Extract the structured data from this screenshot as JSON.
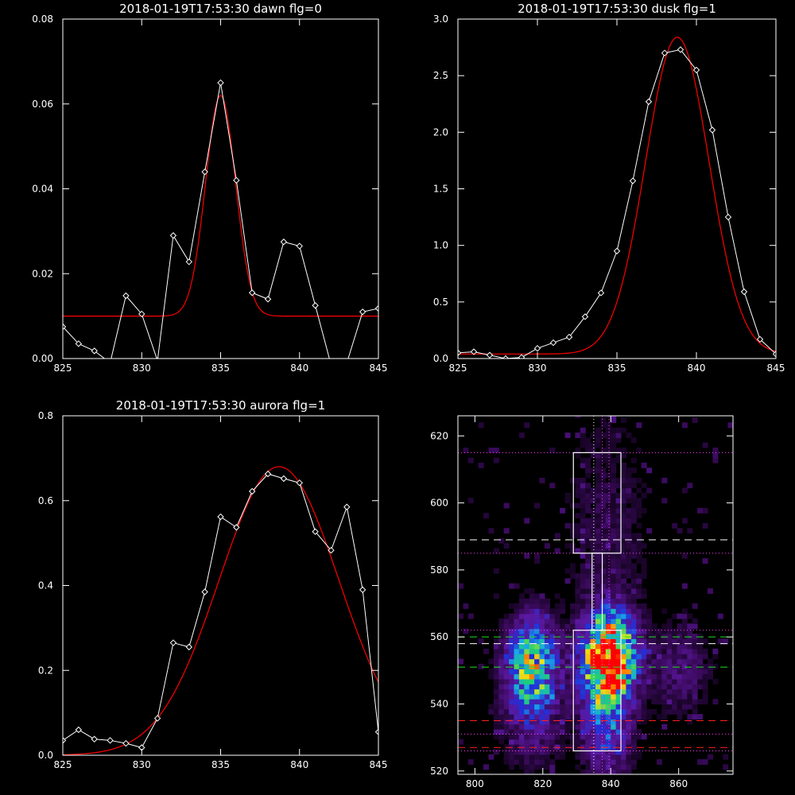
{
  "colors": {
    "background": "#000000",
    "data_line": "#ffffff",
    "fit_line": "#ff0000"
  },
  "chart_data": [
    {
      "type": "line",
      "title": "2018-01-19T17:53:30 dawn flg=0",
      "xlim": [
        825,
        845
      ],
      "ylim": [
        0,
        0.08
      ],
      "x_ticks": [
        825,
        830,
        835,
        840,
        845
      ],
      "x_tick_labels": [
        "825",
        "830",
        "835",
        "840",
        "845"
      ],
      "y_ticks": [
        0,
        0.02,
        0.04,
        0.06,
        0.08
      ],
      "y_tick_labels": [
        "0.00",
        "0.02",
        "0.04",
        "0.06",
        "0.08"
      ],
      "grid": false,
      "series": [
        {
          "role": "data",
          "color": "#ffffff",
          "marker": "diamond",
          "x": [
            825,
            826,
            827,
            828,
            829,
            830,
            831,
            832,
            833,
            834,
            835,
            836,
            837,
            838,
            839,
            840,
            841,
            842,
            843,
            844,
            845
          ],
          "y": [
            0.0075,
            0.0035,
            0.0018,
            -0.001,
            0.0148,
            0.0105,
            -0.0005,
            0.029,
            0.0228,
            0.044,
            0.065,
            0.042,
            0.0155,
            0.014,
            0.0275,
            0.0265,
            0.0125,
            -0.0015,
            -0.001,
            0.011,
            0.0118
          ]
        },
        {
          "role": "fit",
          "color": "#ff0000",
          "shape": "gaussian",
          "amplitude": 0.052,
          "center": 835.0,
          "sigma": 0.95,
          "offset": 0.01
        }
      ]
    },
    {
      "type": "line",
      "title": "2018-01-19T17:53:30 dusk flg=1",
      "xlim": [
        825,
        845
      ],
      "ylim": [
        0,
        3.0
      ],
      "x_ticks": [
        825,
        830,
        835,
        840,
        845
      ],
      "x_tick_labels": [
        "825",
        "830",
        "835",
        "840",
        "845"
      ],
      "y_ticks": [
        0,
        0.5,
        1.0,
        1.5,
        2.0,
        2.5,
        3.0
      ],
      "y_tick_labels": [
        "0.0",
        "0.5",
        "1.0",
        "1.5",
        "2.0",
        "2.5",
        "3.0"
      ],
      "grid": false,
      "series": [
        {
          "role": "data",
          "color": "#ffffff",
          "marker": "diamond",
          "x": [
            825,
            826,
            827,
            828,
            829,
            830,
            831,
            832,
            833,
            834,
            835,
            836,
            837,
            838,
            839,
            840,
            841,
            842,
            843,
            844,
            845
          ],
          "y": [
            0.05,
            0.06,
            0.03,
            0.0,
            0.01,
            0.09,
            0.14,
            0.19,
            0.37,
            0.58,
            0.95,
            1.57,
            2.27,
            2.7,
            2.73,
            2.55,
            2.02,
            1.25,
            0.59,
            0.17,
            0.04
          ]
        },
        {
          "role": "fit",
          "color": "#ff0000",
          "shape": "gaussian",
          "amplitude": 2.8,
          "center": 838.8,
          "sigma": 2.0,
          "offset": 0.04
        }
      ]
    },
    {
      "type": "line",
      "title": "2018-01-19T17:53:30 aurora flg=1",
      "xlim": [
        825,
        845
      ],
      "ylim": [
        0,
        0.8
      ],
      "x_ticks": [
        825,
        830,
        835,
        840,
        845
      ],
      "x_tick_labels": [
        "825",
        "830",
        "835",
        "840",
        "845"
      ],
      "y_ticks": [
        0,
        0.2,
        0.4,
        0.6,
        0.8
      ],
      "y_tick_labels": [
        "0.0",
        "0.2",
        "0.4",
        "0.6",
        "0.8"
      ],
      "grid": false,
      "series": [
        {
          "role": "data",
          "color": "#ffffff",
          "marker": "diamond",
          "x": [
            825,
            826,
            827,
            828,
            829,
            830,
            831,
            832,
            833,
            834,
            835,
            836,
            837,
            838,
            839,
            840,
            841,
            842,
            843,
            844,
            845
          ],
          "y": [
            0.035,
            0.06,
            0.038,
            0.035,
            0.028,
            0.018,
            0.087,
            0.265,
            0.255,
            0.385,
            0.562,
            0.537,
            0.622,
            0.663,
            0.652,
            0.642,
            0.527,
            0.483,
            0.585,
            0.39,
            0.055
          ]
        },
        {
          "role": "fit",
          "color": "#ff0000",
          "shape": "gaussian",
          "amplitude": 0.68,
          "center": 838.7,
          "sigma": 3.8,
          "offset": 0.0
        }
      ]
    },
    {
      "type": "heatmap",
      "title": "",
      "xlim": [
        795,
        876
      ],
      "ylim": [
        519,
        626
      ],
      "x_ticks": [
        800,
        820,
        840,
        860
      ],
      "x_tick_labels": [
        "800",
        "820",
        "840",
        "860"
      ],
      "y_ticks": [
        520,
        540,
        560,
        580,
        600,
        620
      ],
      "y_tick_labels": [
        "520",
        "540",
        "560",
        "580",
        "600",
        "620"
      ],
      "grid": false,
      "colormap": [
        "#000000",
        "#3a0a5c",
        "#5a18a0",
        "#2030d8",
        "#18a8e8",
        "#20d070",
        "#e8e818",
        "#ff8000",
        "#ff0000"
      ],
      "blobs": [
        {
          "x": 816,
          "y": 552,
          "width": 5,
          "height": 9,
          "peak": 0.55
        },
        {
          "x": 816,
          "y": 538,
          "width": 6,
          "height": 12,
          "peak": 0.22
        },
        {
          "x": 839,
          "y": 554,
          "width": 5,
          "height": 8,
          "peak": 1.0
        },
        {
          "x": 838,
          "y": 538,
          "width": 5,
          "height": 14,
          "peak": 0.4
        },
        {
          "x": 860,
          "y": 550,
          "width": 6,
          "height": 10,
          "peak": 0.16
        },
        {
          "x": 838,
          "y": 580,
          "width": 8,
          "height": 25,
          "peak": 0.07
        },
        {
          "x": 838,
          "y": 605,
          "width": 10,
          "height": 25,
          "peak": 0.04
        }
      ],
      "overlays": {
        "boxes": [
          {
            "x0": 829,
            "x1": 843,
            "y0": 585,
            "y1": 615
          },
          {
            "x0": 834.5,
            "x1": 837.5,
            "y0": 562,
            "y1": 585
          },
          {
            "x0": 829,
            "x1": 843,
            "y0": 526,
            "y1": 562
          }
        ],
        "vertical_dotted": [
          {
            "x": 835,
            "color": "#ffffff"
          },
          {
            "x": 837.5,
            "color": "#ff40ff"
          },
          {
            "x": 839.5,
            "color": "#ff40ff"
          }
        ],
        "horizontal_dotted": [
          {
            "y": 615,
            "color": "#ff40ff"
          },
          {
            "y": 585,
            "color": "#ff40ff"
          },
          {
            "y": 562,
            "color": "#ff40ff"
          },
          {
            "y": 531,
            "color": "#ff40ff"
          },
          {
            "y": 526,
            "color": "#ff40ff"
          }
        ],
        "horizontal_dashed": [
          {
            "y": 589,
            "color": "#ffffff"
          },
          {
            "y": 560,
            "color": "#20e020"
          },
          {
            "y": 558,
            "color": "#ffffff"
          },
          {
            "y": 551,
            "color": "#20e020"
          },
          {
            "y": 535,
            "color": "#ff2020"
          },
          {
            "y": 527,
            "color": "#ff2020"
          }
        ]
      }
    }
  ]
}
